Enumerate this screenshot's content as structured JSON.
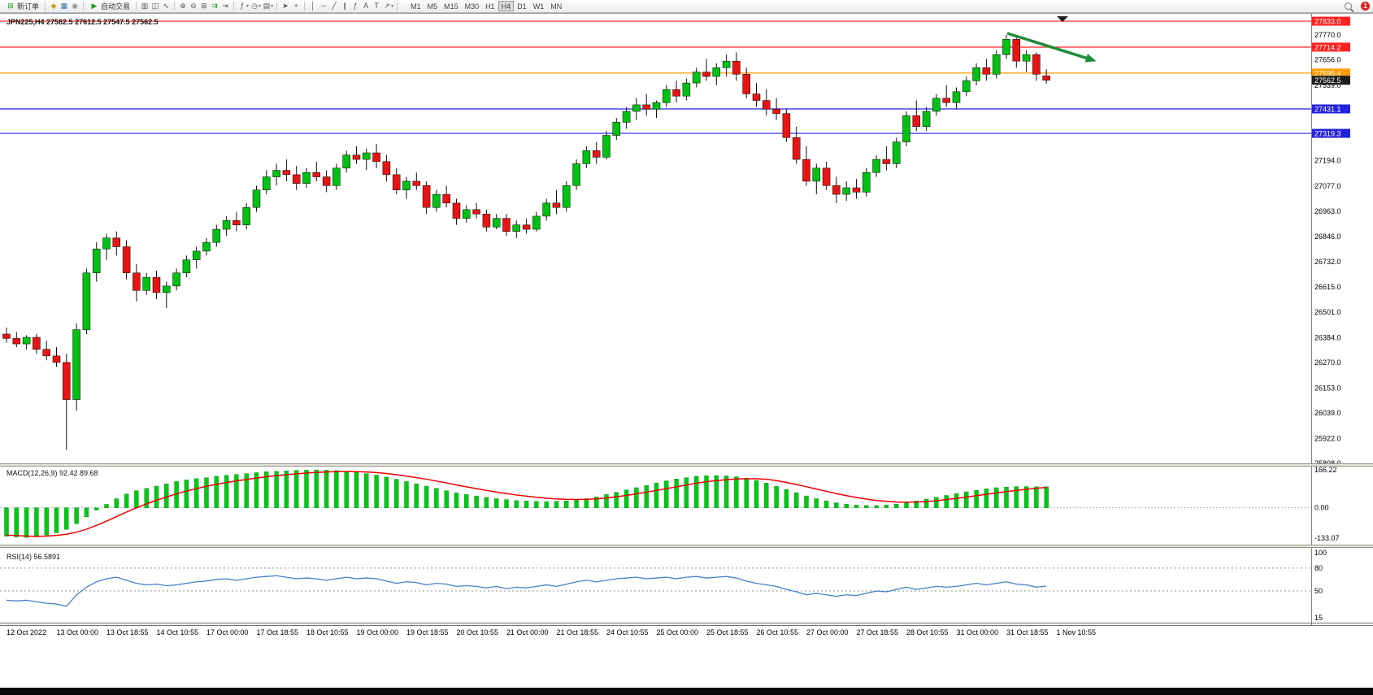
{
  "app": {
    "notification_count": "1"
  },
  "toolbar": {
    "new_order": "新订单",
    "auto_trading": "自动交易",
    "timeframes": [
      "M1",
      "M5",
      "M15",
      "M30",
      "H1",
      "H4",
      "D1",
      "W1",
      "MN"
    ],
    "active_timeframe": "H4"
  },
  "colors": {
    "up": "#00c014",
    "down": "#e81414",
    "wick": "#101010",
    "macd_bar": "#00c814",
    "macd_signal": "#f00000",
    "rsi_line": "#4680c8",
    "annotation": "#1f8c3a",
    "badge_current": "#1c1c1c",
    "level_red": "#ff2020",
    "level_orange": "#ff9c00",
    "level_blue": "#2222dd"
  },
  "chart_data": [
    {
      "type": "candlestick",
      "symbol": "JPN225",
      "timeframe": "H4",
      "title": "JPN225,H4 27582.5 27612.5 27547.5 27562.5",
      "current_ohlc": {
        "open": 27582.5,
        "high": 27612.5,
        "low": 27547.5,
        "close": 27562.5
      },
      "ylim": [
        25808,
        27863
      ],
      "y_ticks": [
        27770.0,
        27656.0,
        27539.0,
        27194.0,
        27077.0,
        26963.0,
        26846.0,
        26732.0,
        26615.0,
        26501.0,
        26384.0,
        26270.0,
        26153.0,
        26039.0,
        25922.0,
        25808.0
      ],
      "hlines": [
        {
          "price": 27833.0,
          "label": "27833.0",
          "color": "#ff2020"
        },
        {
          "price": 27714.2,
          "label": "27714.2",
          "color": "#ff2020"
        },
        {
          "price": 27595.4,
          "label": "27595.4",
          "color": "#ff9c00"
        },
        {
          "price": 27431.1,
          "label": "27431.1",
          "color": "#2222dd"
        },
        {
          "price": 27319.3,
          "label": "27319.3",
          "color": "#2222dd"
        }
      ],
      "current_price_badge": {
        "price": 27562.5,
        "label": "27562.5",
        "color": "#1c1c1c"
      },
      "annotation_arrow": {
        "from_index": 100.2,
        "from_price": 27776,
        "to_index": 109,
        "to_price": 27650,
        "color": "#1f8c3a"
      },
      "x_labels": [
        "12 Oct 2022",
        "13 Oct 00:00",
        "13 Oct 18:55",
        "14 Oct 10:55",
        "17 Oct 00:00",
        "17 Oct 18:55",
        "18 Oct 10:55",
        "19 Oct 00:00",
        "19 Oct 18:55",
        "20 Oct 10:55",
        "21 Oct 00:00",
        "21 Oct 18:55",
        "24 Oct 10:55",
        "25 Oct 00:00",
        "25 Oct 18:55",
        "26 Oct 10:55",
        "27 Oct 00:00",
        "27 Oct 18:55",
        "28 Oct 10:55",
        "31 Oct 00:00",
        "31 Oct 18:55",
        "1 Nov 10:55"
      ],
      "candles": [
        [
          26400,
          26430,
          26360,
          26380
        ],
        [
          26380,
          26410,
          26340,
          26355
        ],
        [
          26355,
          26395,
          26330,
          26385
        ],
        [
          26385,
          26400,
          26310,
          26330
        ],
        [
          26330,
          26370,
          26280,
          26300
        ],
        [
          26300,
          26340,
          26250,
          26270
        ],
        [
          26270,
          26310,
          25870,
          26100
        ],
        [
          26100,
          26450,
          26050,
          26420
        ],
        [
          26420,
          26700,
          26400,
          26680
        ],
        [
          26680,
          26820,
          26640,
          26790
        ],
        [
          26790,
          26860,
          26740,
          26840
        ],
        [
          26840,
          26870,
          26760,
          26800
        ],
        [
          26800,
          26830,
          26650,
          26680
        ],
        [
          26680,
          26720,
          26550,
          26600
        ],
        [
          26600,
          26680,
          26580,
          26660
        ],
        [
          26660,
          26690,
          26560,
          26590
        ],
        [
          26590,
          26640,
          26520,
          26620
        ],
        [
          26620,
          26700,
          26600,
          26680
        ],
        [
          26680,
          26760,
          26660,
          26740
        ],
        [
          26740,
          26800,
          26700,
          26780
        ],
        [
          26780,
          26840,
          26760,
          26820
        ],
        [
          26820,
          26900,
          26800,
          26880
        ],
        [
          26880,
          26940,
          26850,
          26920
        ],
        [
          26920,
          26960,
          26870,
          26900
        ],
        [
          26900,
          27000,
          26880,
          26980
        ],
        [
          26980,
          27080,
          26960,
          27060
        ],
        [
          27060,
          27150,
          27040,
          27120
        ],
        [
          27120,
          27180,
          27080,
          27150
        ],
        [
          27150,
          27200,
          27100,
          27130
        ],
        [
          27130,
          27170,
          27060,
          27090
        ],
        [
          27090,
          27160,
          27070,
          27140
        ],
        [
          27140,
          27190,
          27100,
          27120
        ],
        [
          27120,
          27150,
          27050,
          27080
        ],
        [
          27080,
          27180,
          27060,
          27160
        ],
        [
          27160,
          27240,
          27140,
          27220
        ],
        [
          27220,
          27260,
          27180,
          27200
        ],
        [
          27200,
          27250,
          27150,
          27230
        ],
        [
          27230,
          27270,
          27160,
          27190
        ],
        [
          27190,
          27220,
          27100,
          27130
        ],
        [
          27130,
          27160,
          27040,
          27060
        ],
        [
          27060,
          27120,
          27020,
          27100
        ],
        [
          27100,
          27140,
          27060,
          27080
        ],
        [
          27080,
          27100,
          26950,
          26980
        ],
        [
          26980,
          27060,
          26960,
          27040
        ],
        [
          27040,
          27080,
          26980,
          27000
        ],
        [
          27000,
          27020,
          26900,
          26930
        ],
        [
          26930,
          26990,
          26910,
          26970
        ],
        [
          26970,
          27000,
          26930,
          26950
        ],
        [
          26950,
          26970,
          26870,
          26890
        ],
        [
          26890,
          26950,
          26880,
          26930
        ],
        [
          26930,
          26950,
          26850,
          26870
        ],
        [
          26870,
          26920,
          26840,
          26900
        ],
        [
          26900,
          26930,
          26860,
          26880
        ],
        [
          26880,
          26960,
          26870,
          26940
        ],
        [
          26940,
          27020,
          26920,
          27000
        ],
        [
          27000,
          27060,
          26950,
          26980
        ],
        [
          26980,
          27100,
          26960,
          27080
        ],
        [
          27080,
          27200,
          27060,
          27180
        ],
        [
          27180,
          27260,
          27160,
          27240
        ],
        [
          27240,
          27280,
          27180,
          27210
        ],
        [
          27210,
          27330,
          27200,
          27310
        ],
        [
          27310,
          27390,
          27290,
          27370
        ],
        [
          27370,
          27440,
          27340,
          27420
        ],
        [
          27420,
          27480,
          27380,
          27450
        ],
        [
          27450,
          27500,
          27400,
          27430
        ],
        [
          27430,
          27470,
          27390,
          27460
        ],
        [
          27460,
          27540,
          27440,
          27520
        ],
        [
          27520,
          27560,
          27460,
          27490
        ],
        [
          27490,
          27570,
          27470,
          27550
        ],
        [
          27550,
          27620,
          27530,
          27600
        ],
        [
          27600,
          27660,
          27560,
          27580
        ],
        [
          27580,
          27640,
          27540,
          27620
        ],
        [
          27620,
          27680,
          27580,
          27650
        ],
        [
          27650,
          27690,
          27560,
          27590
        ],
        [
          27590,
          27620,
          27480,
          27500
        ],
        [
          27500,
          27550,
          27440,
          27470
        ],
        [
          27470,
          27520,
          27400,
          27430
        ],
        [
          27430,
          27480,
          27380,
          27410
        ],
        [
          27410,
          27430,
          27280,
          27300
        ],
        [
          27300,
          27350,
          27180,
          27200
        ],
        [
          27200,
          27260,
          27080,
          27100
        ],
        [
          27100,
          27180,
          27040,
          27160
        ],
        [
          27160,
          27190,
          27060,
          27080
        ],
        [
          27080,
          27120,
          27000,
          27040
        ],
        [
          27040,
          27100,
          27010,
          27070
        ],
        [
          27070,
          27110,
          27020,
          27050
        ],
        [
          27050,
          27160,
          27030,
          27140
        ],
        [
          27140,
          27220,
          27120,
          27200
        ],
        [
          27200,
          27260,
          27150,
          27180
        ],
        [
          27180,
          27300,
          27160,
          27280
        ],
        [
          27280,
          27420,
          27260,
          27400
        ],
        [
          27400,
          27470,
          27330,
          27350
        ],
        [
          27350,
          27440,
          27330,
          27420
        ],
        [
          27420,
          27500,
          27400,
          27480
        ],
        [
          27480,
          27540,
          27440,
          27460
        ],
        [
          27460,
          27530,
          27430,
          27510
        ],
        [
          27510,
          27580,
          27490,
          27560
        ],
        [
          27560,
          27640,
          27540,
          27620
        ],
        [
          27620,
          27660,
          27560,
          27590
        ],
        [
          27590,
          27700,
          27570,
          27680
        ],
        [
          27680,
          27770,
          27660,
          27750
        ],
        [
          27750,
          27760,
          27620,
          27650
        ],
        [
          27650,
          27700,
          27600,
          27680
        ],
        [
          27680,
          27690,
          27560,
          27590
        ],
        [
          27582.5,
          27612.5,
          27547.5,
          27562.5
        ]
      ]
    },
    {
      "type": "histogram+line",
      "name": "MACD(12,26,9)",
      "value_main": "92.42",
      "value_signal": "89.68",
      "ylim": [
        -133.07,
        166.22
      ],
      "y_ticks": [
        "166.22",
        "0.00",
        "-133.07"
      ],
      "histogram": [
        -125,
        -128,
        -130,
        -128,
        -120,
        -110,
        -95,
        -70,
        -40,
        -10,
        15,
        40,
        60,
        75,
        85,
        95,
        105,
        115,
        122,
        128,
        132,
        138,
        142,
        146,
        150,
        154,
        158,
        160,
        162,
        164,
        165,
        166,
        165,
        163,
        160,
        156,
        150,
        143,
        135,
        125,
        115,
        105,
        95,
        85,
        75,
        65,
        58,
        52,
        46,
        40,
        36,
        32,
        30,
        28,
        27,
        28,
        30,
        34,
        40,
        48,
        58,
        68,
        78,
        88,
        98,
        108,
        118,
        126,
        132,
        138,
        140,
        141,
        140,
        136,
        130,
        120,
        108,
        94,
        80,
        66,
        52,
        40,
        30,
        22,
        16,
        12,
        10,
        10,
        12,
        16,
        22,
        30,
        38,
        46,
        54,
        62,
        70,
        77,
        83,
        88,
        91,
        93,
        93,
        92,
        92.42
      ],
      "signal": [
        -120,
        -122,
        -124,
        -125,
        -124,
        -121,
        -116,
        -107,
        -94,
        -77,
        -59,
        -39,
        -19,
        0,
        17,
        33,
        47,
        61,
        73,
        84,
        94,
        103,
        111,
        118,
        124,
        130,
        136,
        141,
        145,
        149,
        152,
        155,
        157,
        158,
        159,
        158,
        157,
        154,
        150,
        145,
        139,
        132,
        125,
        117,
        109,
        100,
        92,
        84,
        76,
        69,
        62,
        56,
        51,
        46,
        42,
        39,
        37,
        36,
        37,
        39,
        43,
        48,
        54,
        61,
        68,
        76,
        84,
        92,
        100,
        108,
        114,
        119,
        123,
        126,
        127,
        127,
        125,
        119,
        111,
        102,
        92,
        82,
        72,
        62,
        53,
        45,
        38,
        32,
        28,
        25,
        24,
        25,
        27,
        31,
        36,
        41,
        47,
        53,
        59,
        65,
        71,
        76,
        81,
        85,
        89.68
      ]
    },
    {
      "type": "line",
      "name": "RSI(14)",
      "value": "56.5891",
      "ylim": [
        15,
        100
      ],
      "levels": [
        80,
        50
      ],
      "y_ticks": [
        "100",
        "80",
        "50",
        "15"
      ],
      "values": [
        38,
        37,
        38,
        36,
        34,
        33,
        30,
        45,
        55,
        62,
        66,
        68,
        64,
        60,
        58,
        59,
        57,
        58,
        60,
        62,
        63,
        65,
        66,
        64,
        66,
        68,
        69,
        70,
        68,
        66,
        67,
        66,
        64,
        66,
        68,
        66,
        67,
        66,
        63,
        60,
        62,
        61,
        58,
        60,
        59,
        56,
        57,
        56,
        54,
        56,
        53,
        55,
        54,
        56,
        58,
        56,
        59,
        62,
        64,
        62,
        64,
        66,
        67,
        68,
        66,
        67,
        68,
        66,
        68,
        69,
        67,
        68,
        69,
        67,
        63,
        60,
        58,
        56,
        52,
        49,
        45,
        47,
        45,
        43,
        45,
        44,
        47,
        50,
        49,
        52,
        55,
        52,
        54,
        56,
        55,
        56,
        58,
        60,
        58,
        60,
        62,
        59,
        58,
        55,
        56.59
      ]
    }
  ]
}
